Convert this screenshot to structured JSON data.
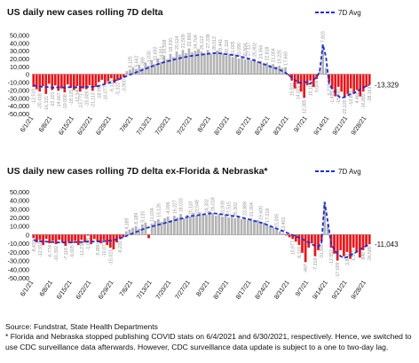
{
  "chart_data": [
    {
      "type": "bar",
      "title": "US daily new cases rolling 7D delta",
      "legend": {
        "label": "7D Avg",
        "placement": "top-right"
      },
      "y_ticks": [
        "50,000",
        "40,000",
        "30,000",
        "20,000",
        "10,000",
        "0",
        "-10,000",
        "-20,000",
        "-30,000",
        "-40,000",
        "-50,000"
      ],
      "ylim": [
        -50000,
        55000
      ],
      "x_ticks": [
        "6/1/21",
        "6/8/21",
        "6/15/21",
        "6/22/21",
        "6/29/21",
        "7/6/21",
        "7/13/21",
        "7/20/21",
        "7/27/21",
        "8/3/21",
        "8/10/21",
        "8/17/21",
        "8/24/21",
        "8/31/21",
        "9/7/21",
        "9/14/21",
        "9/21/21",
        "9/28/21"
      ],
      "end_label": "-13,329",
      "colors": {
        "positive": "#b4b4b4",
        "negative": "#e8161b",
        "avg": "#1a2fd6",
        "labels": "#9a9a9a"
      },
      "series": [
        {
          "values": [
            -16000,
            -19000,
            -22000,
            -15000,
            -25000,
            -12000,
            -20000,
            -14000,
            -21000,
            -18000,
            -23000,
            -13000,
            -17000,
            -20000,
            -15000,
            -22000,
            -18000,
            -19000,
            -14000,
            -21000,
            -16000,
            -10000,
            -7000,
            -12000,
            -9000,
            -5000,
            -11000,
            -8000,
            -6000,
            -4000,
            4000,
            6000,
            9000,
            7000,
            12000,
            8000,
            15000,
            11000,
            18000,
            13000,
            20000,
            16000,
            24000,
            19000,
            26000,
            22000,
            29000,
            25000,
            31000,
            27000,
            33000,
            28000,
            30000,
            32000,
            29000,
            27000,
            31000,
            26000,
            28000,
            30000,
            25000,
            27000,
            24000,
            26000,
            22000,
            25000,
            20000,
            23000,
            19000,
            21000,
            18000,
            20000,
            16000,
            17000,
            14000,
            15000,
            12000,
            13000,
            10000,
            11000,
            8000,
            9000,
            -1499,
            -8000,
            -18000,
            -12000,
            -22000,
            -30000,
            -14000,
            -8000,
            -16000,
            -6000,
            4000,
            38000,
            8000,
            -10000,
            -19000,
            -28000,
            -16000,
            -22000,
            -30000,
            -25000,
            -18000,
            -24000,
            -20000,
            -28163,
            -22000,
            -16000,
            -13329
          ],
          "avg": [
            -14000,
            -15000,
            -15500,
            -16000,
            -16000,
            -16500,
            -17000,
            -17000,
            -16500,
            -16500,
            -17000,
            -16500,
            -16500,
            -16500,
            -16500,
            -16500,
            -16500,
            -16000,
            -16000,
            -16000,
            -15500,
            -15000,
            -13500,
            -12500,
            -11000,
            -10000,
            -8500,
            -7000,
            -5500,
            -4000,
            -2000,
            -500,
            1000,
            2500,
            4000,
            5500,
            7000,
            8500,
            10000,
            11500,
            13000,
            14000,
            15500,
            16500,
            17500,
            18500,
            19500,
            20500,
            21500,
            22000,
            23000,
            23500,
            24000,
            24500,
            25000,
            25500,
            26000,
            26500,
            27000,
            27000,
            26500,
            26000,
            25500,
            25000,
            24500,
            24000,
            23000,
            22000,
            21000,
            20000,
            19000,
            17500,
            16000,
            14500,
            13000,
            11500,
            10000,
            8500,
            7500,
            6000,
            4000,
            2000,
            -1000,
            -4000,
            -7000,
            -10000,
            -11000,
            -9000,
            -11000,
            -12000,
            -7000,
            -4000,
            4000,
            38000,
            22000,
            -12000,
            -18000,
            -23000,
            -28000,
            -30000,
            -29000,
            -27000,
            -25000,
            -24000,
            -22000,
            -19000,
            -17000,
            -15000,
            -13329
          ]
        }
      ],
      "value_labels": [
        "-12,519",
        "-20,418",
        "-16,321",
        "-22,101",
        "-14,667",
        "-19,008",
        "-18,125",
        "-17,340",
        "-13,771",
        "-15,009",
        "-21,113",
        "-18,992",
        "-10,077",
        "-6,113",
        "-5,322",
        "-3,900",
        "8,125",
        "5,662",
        "-389",
        "-1,030",
        "-10,692",
        "14,001",
        "16,508",
        "18,330",
        "20,114",
        "21,509",
        "22,800",
        "24,704",
        "26,112",
        "27,338",
        "28,012",
        "29,441",
        "30,118",
        "31,005",
        "33,090",
        "30,504",
        "27,117",
        "25,902",
        "24,366",
        "22,818",
        "21,004",
        "19,225",
        "17,660",
        "15,911",
        "14,020",
        "12,385",
        "10,116",
        "9,004",
        "7,815",
        "6,210",
        "-1,499",
        "-15,965",
        "-22,120",
        "-12,880",
        "4,460",
        "-16,892",
        "-28,163"
      ]
    },
    {
      "type": "bar",
      "title": "US daily new cases rolling 7D delta ex-Florida & Nebraska*",
      "legend": {
        "label": "7D Avg",
        "placement": "top-right"
      },
      "y_ticks": [
        "50,000",
        "40,000",
        "30,000",
        "20,000",
        "10,000",
        "0",
        "-10,000",
        "-20,000",
        "-30,000",
        "-40,000",
        "-50,000"
      ],
      "ylim": [
        -50000,
        55000
      ],
      "x_ticks": [
        "6/1/21",
        "6/8/21",
        "6/15/21",
        "6/22/21",
        "6/29/21",
        "7/6/21",
        "7/13/21",
        "7/20/21",
        "7/27/21",
        "8/3/21",
        "8/10/21",
        "8/17/21",
        "8/24/21",
        "8/31/21",
        "9/7/21",
        "9/14/21",
        "9/21/21",
        "9/28/21"
      ],
      "end_label": "-11,043",
      "colors": {
        "positive": "#b4b4b4",
        "negative": "#e8161b",
        "avg": "#1a2fd6",
        "labels": "#9a9a9a"
      },
      "series": [
        {
          "values": [
            -4000,
            -9000,
            -6000,
            -12000,
            -5000,
            -10000,
            -7000,
            -11000,
            -6000,
            -9000,
            -13000,
            -8000,
            -10000,
            -7000,
            -12000,
            -6000,
            -9000,
            -1095,
            -11000,
            -5000,
            -8000,
            -10000,
            -6000,
            -12000,
            -15000,
            -17000,
            -9000,
            -5000,
            -3000,
            4000,
            6000,
            8000,
            10000,
            7000,
            12000,
            14000,
            -4096,
            13000,
            16000,
            18000,
            15000,
            19000,
            21000,
            17000,
            22000,
            20000,
            24000,
            19000,
            23000,
            21000,
            25000,
            22000,
            26000,
            24000,
            23000,
            27000,
            25000,
            22000,
            24000,
            21000,
            23000,
            20000,
            22000,
            19000,
            21000,
            18000,
            20000,
            17000,
            19000,
            16000,
            17000,
            15000,
            14000,
            12000,
            10000,
            8000,
            6000,
            4000,
            2000,
            -497,
            -3000,
            -5000,
            -8000,
            -12000,
            -21000,
            -31849,
            -15000,
            -10000,
            -25000,
            -18000,
            -8000,
            38000,
            12000,
            -15000,
            -22000,
            -30000,
            -18000,
            -25000,
            -20000,
            -28000,
            -15000,
            -20000,
            -26589,
            -18000,
            -14000,
            -11043
          ],
          "avg": [
            -6000,
            -7000,
            -7500,
            -8000,
            -8000,
            -8500,
            -8500,
            -9000,
            -9000,
            -9000,
            -9000,
            -9000,
            -9000,
            -8500,
            -8500,
            -8500,
            -8000,
            -8000,
            -8000,
            -8000,
            -8000,
            -7500,
            -7500,
            -7000,
            -7000,
            -6500,
            -5500,
            -4500,
            -3000,
            -1500,
            0,
            1500,
            3000,
            4500,
            6000,
            7500,
            8500,
            9500,
            10500,
            11500,
            12500,
            13500,
            14500,
            15500,
            16500,
            17500,
            18500,
            19500,
            20500,
            21500,
            22000,
            22500,
            23000,
            23500,
            24000,
            24500,
            25000,
            24500,
            24000,
            23500,
            23000,
            22500,
            22000,
            21500,
            21000,
            20000,
            19000,
            18000,
            17000,
            16000,
            15000,
            14000,
            13000,
            11500,
            10000,
            8500,
            7000,
            5500,
            4000,
            2500,
            1000,
            -500,
            -2000,
            -3500,
            -5000,
            -7000,
            -9000,
            -11000,
            -13000,
            -14000,
            -10000,
            38000,
            15000,
            -10000,
            -18000,
            -22000,
            -25000,
            -27000,
            -26000,
            -24000,
            -22000,
            -20000,
            -17000,
            -15000,
            -13000,
            -11043
          ],
          "y_override": []
        }
      ],
      "value_labels": [
        "-8,432",
        "-12,910",
        "-6,774",
        "-10,392",
        "-7,118",
        "-9,605",
        "-11,238",
        "-1,095",
        "-5,880",
        "-10,077",
        "-15,021",
        "-6,233",
        "4,189",
        "8,189",
        "9,120",
        "11,034",
        "13,126",
        "-4,096",
        "16,227",
        "18,033",
        "20,110",
        "22,548",
        "24,302",
        "26,018",
        "31,939",
        "27,515",
        "25,302",
        "23,889",
        "21,004",
        "19,600",
        "17,218",
        "15,005",
        "13,402",
        "10,977",
        "8,110",
        "-497",
        "-7,219",
        "-31,849",
        "-12,552",
        "-17,009",
        "3,840",
        "1,515",
        "846",
        "-26,589"
      ]
    }
  ],
  "footnote": {
    "source": "Source: Fundstrat, State Health Departments",
    "note": "* Florida and Nebraska stopped publishing COVID stats on 6/4/2021 and 6/30/2021, respectively. Hence, we switched to use CDC surveillance data afterwards. However, CDC surveillance data update is subject to a one to two-day lag."
  }
}
